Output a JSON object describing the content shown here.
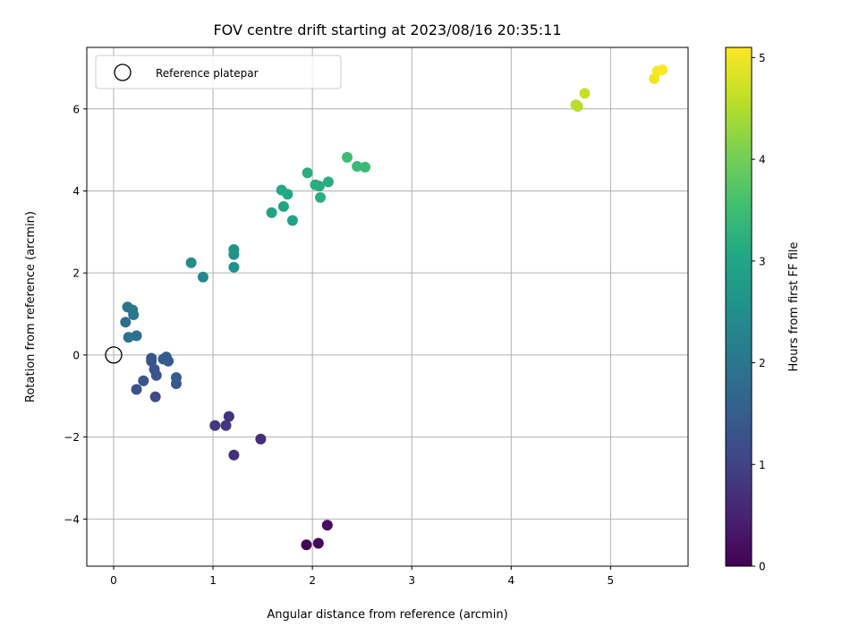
{
  "chart_data": {
    "type": "scatter",
    "title": "FOV centre drift starting at 2023/08/16 20:35:11",
    "xlabel": "Angular distance from reference (arcmin)",
    "ylabel": "Rotation from reference (arcmin)",
    "colorbar_label": "Hours from first FF file",
    "colormap": "viridis",
    "xlim": [
      -0.27,
      5.78
    ],
    "ylim": [
      -5.15,
      7.5
    ],
    "clim": [
      0,
      5.1
    ],
    "x_ticks": [
      0,
      1,
      2,
      3,
      4,
      5
    ],
    "y_ticks": [
      -4,
      -2,
      0,
      2,
      4,
      6
    ],
    "colorbar_ticks": [
      0,
      1,
      2,
      3,
      4,
      5
    ],
    "grid": true,
    "legend": {
      "position": "top-left",
      "entries": [
        "Reference platepar"
      ]
    },
    "reference_point": {
      "x": 0,
      "y": 0
    },
    "points": [
      {
        "x": 1.94,
        "y": -4.63,
        "t": 0.05
      },
      {
        "x": 2.06,
        "y": -4.59,
        "t": 0.12
      },
      {
        "x": 2.15,
        "y": -4.15,
        "t": 0.2
      },
      {
        "x": 1.48,
        "y": -2.05,
        "t": 0.65
      },
      {
        "x": 1.21,
        "y": -2.44,
        "t": 0.7
      },
      {
        "x": 1.16,
        "y": -1.5,
        "t": 0.75
      },
      {
        "x": 1.13,
        "y": -1.72,
        "t": 0.8
      },
      {
        "x": 1.02,
        "y": -1.72,
        "t": 0.85
      },
      {
        "x": 0.42,
        "y": -1.02,
        "t": 1.15
      },
      {
        "x": 0.23,
        "y": -0.84,
        "t": 1.25
      },
      {
        "x": 0.3,
        "y": -0.63,
        "t": 1.3
      },
      {
        "x": 0.63,
        "y": -0.7,
        "t": 1.4
      },
      {
        "x": 0.63,
        "y": -0.55,
        "t": 1.45
      },
      {
        "x": 0.43,
        "y": -0.5,
        "t": 1.35
      },
      {
        "x": 0.41,
        "y": -0.35,
        "t": 1.3
      },
      {
        "x": 0.38,
        "y": -0.15,
        "t": 1.35
      },
      {
        "x": 0.38,
        "y": -0.08,
        "t": 1.35
      },
      {
        "x": 0.5,
        "y": -0.1,
        "t": 1.4
      },
      {
        "x": 0.53,
        "y": -0.05,
        "t": 1.5
      },
      {
        "x": 0.55,
        "y": -0.15,
        "t": 1.45
      },
      {
        "x": 0.12,
        "y": 0.8,
        "t": 1.85
      },
      {
        "x": 0.15,
        "y": 0.43,
        "t": 1.95
      },
      {
        "x": 0.23,
        "y": 0.47,
        "t": 1.9
      },
      {
        "x": 0.14,
        "y": 1.17,
        "t": 2.0
      },
      {
        "x": 0.19,
        "y": 1.1,
        "t": 2.05
      },
      {
        "x": 0.2,
        "y": 0.98,
        "t": 2.0
      },
      {
        "x": 0.78,
        "y": 2.25,
        "t": 2.45
      },
      {
        "x": 0.9,
        "y": 1.9,
        "t": 2.35
      },
      {
        "x": 1.21,
        "y": 2.14,
        "t": 2.55
      },
      {
        "x": 1.21,
        "y": 2.45,
        "t": 2.55
      },
      {
        "x": 1.21,
        "y": 2.57,
        "t": 2.6
      },
      {
        "x": 1.59,
        "y": 3.47,
        "t": 2.95
      },
      {
        "x": 1.71,
        "y": 3.62,
        "t": 3.0
      },
      {
        "x": 1.8,
        "y": 3.28,
        "t": 2.95
      },
      {
        "x": 1.69,
        "y": 4.02,
        "t": 3.05
      },
      {
        "x": 1.75,
        "y": 3.92,
        "t": 3.05
      },
      {
        "x": 1.95,
        "y": 4.44,
        "t": 3.2
      },
      {
        "x": 2.03,
        "y": 4.15,
        "t": 3.15
      },
      {
        "x": 2.07,
        "y": 4.12,
        "t": 3.15
      },
      {
        "x": 2.08,
        "y": 3.84,
        "t": 3.2
      },
      {
        "x": 2.16,
        "y": 4.22,
        "t": 3.2
      },
      {
        "x": 2.35,
        "y": 4.82,
        "t": 3.5
      },
      {
        "x": 2.45,
        "y": 4.6,
        "t": 3.45
      },
      {
        "x": 2.53,
        "y": 4.58,
        "t": 3.45
      },
      {
        "x": 4.65,
        "y": 6.1,
        "t": 4.55
      },
      {
        "x": 4.67,
        "y": 6.06,
        "t": 4.55
      },
      {
        "x": 4.74,
        "y": 6.38,
        "t": 4.65
      },
      {
        "x": 5.44,
        "y": 6.74,
        "t": 5.0
      },
      {
        "x": 5.47,
        "y": 6.92,
        "t": 5.05
      },
      {
        "x": 5.52,
        "y": 6.95,
        "t": 5.1
      }
    ]
  }
}
